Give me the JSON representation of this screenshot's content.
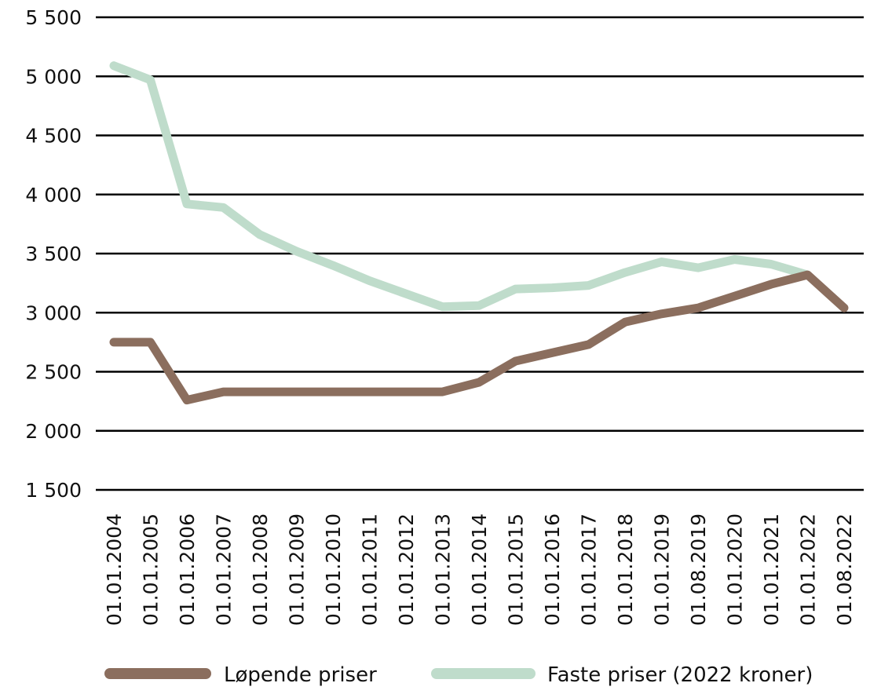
{
  "chart_data": {
    "type": "line",
    "title": "",
    "xlabel": "",
    "ylabel": "",
    "ylim": [
      1500,
      5500
    ],
    "yticks": [
      1500,
      2000,
      2500,
      3000,
      3500,
      4000,
      4500,
      5000,
      5500
    ],
    "ytick_labels": [
      "1 500",
      "2 000",
      "2 500",
      "3 000",
      "3 500",
      "4 000",
      "4 500",
      "5 000",
      "5 500"
    ],
    "grid": "horizontal",
    "legend_position": "bottom",
    "categories": [
      "01.01.2004",
      "01.01.2005",
      "01.01.2006",
      "01.01.2007",
      "01.01.2008",
      "01.01.2009",
      "01.01.2010",
      "01.01.2011",
      "01.01.2012",
      "01.01.2013",
      "01.01.2014",
      "01.01.2015",
      "01.01.2016",
      "01.01.2017",
      "01.01.2018",
      "01.01.2019",
      "01.08.2019",
      "01.01.2020",
      "01.01.2021",
      "01.01.2022",
      "01.08.2022"
    ],
    "series": [
      {
        "name": "Løpende priser",
        "color": "#8b6e5e",
        "values": [
          2750,
          2750,
          2260,
          2330,
          2330,
          2330,
          2330,
          2330,
          2330,
          2330,
          2410,
          2590,
          2660,
          2730,
          2920,
          2990,
          3040,
          3140,
          3240,
          3320,
          3040
        ]
      },
      {
        "name": "Faste priser (2022 kroner)",
        "color": "#bfdccb",
        "values": [
          5090,
          4970,
          3920,
          3890,
          3660,
          3520,
          3400,
          3270,
          3160,
          3050,
          3060,
          3200,
          3210,
          3230,
          3340,
          3430,
          3380,
          3450,
          3410,
          3320,
          null
        ]
      }
    ]
  }
}
